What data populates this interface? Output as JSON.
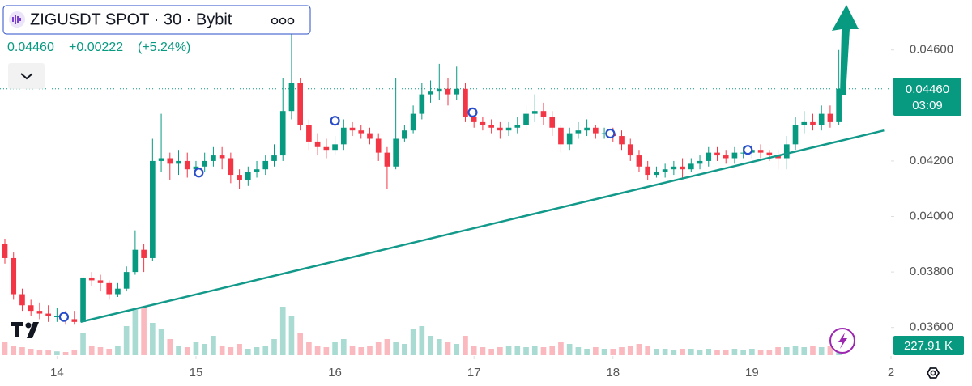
{
  "chart_data": {
    "type": "candlestick",
    "title": "ZIGUSDT SPOT · 30 · Bybit",
    "last_price": "0.04460",
    "change": "+0.00222",
    "change_pct": "(+5.24%)",
    "countdown": "03:09",
    "volume_label": "227.91 K",
    "up_color": "#089981",
    "down_color": "#f23645",
    "xlim": [
      13.59,
      20.0
    ],
    "ylim": [
      0.035,
      0.0478
    ],
    "xticks": [
      14,
      15,
      16,
      17,
      18,
      19,
      {
        "value": 20,
        "label": "2"
      }
    ],
    "yticks": [
      {
        "value": 0.046,
        "label": "0.04600"
      },
      {
        "value": 0.042,
        "label": "0.04200"
      },
      {
        "value": 0.04,
        "label": "0.04000"
      },
      {
        "value": 0.038,
        "label": "0.03800"
      },
      {
        "value": 0.036,
        "label": "0.03600"
      }
    ],
    "x": [
      13.625,
      13.6875,
      13.75,
      13.8125,
      13.875,
      13.9375,
      14.0,
      14.0625,
      14.125,
      14.1875,
      14.25,
      14.3125,
      14.375,
      14.4375,
      14.5,
      14.5625,
      14.625,
      14.6875,
      14.75,
      14.8125,
      14.875,
      14.9375,
      15.0,
      15.0625,
      15.125,
      15.1875,
      15.25,
      15.3125,
      15.375,
      15.4375,
      15.5,
      15.5625,
      15.625,
      15.6875,
      15.75,
      15.8125,
      15.875,
      15.9375,
      16.0,
      16.0625,
      16.125,
      16.1875,
      16.25,
      16.3125,
      16.375,
      16.4375,
      16.5,
      16.5625,
      16.625,
      16.6875,
      16.75,
      16.8125,
      16.875,
      16.9375,
      17.0,
      17.0625,
      17.125,
      17.1875,
      17.25,
      17.3125,
      17.375,
      17.4375,
      17.5,
      17.5625,
      17.625,
      17.6875,
      17.75,
      17.8125,
      17.875,
      17.9375,
      18.0,
      18.0625,
      18.125,
      18.1875,
      18.25,
      18.3125,
      18.375,
      18.4375,
      18.5,
      18.5625,
      18.625,
      18.6875,
      18.75,
      18.8125,
      18.875,
      18.9375,
      19.0,
      19.0625,
      19.125,
      19.1875,
      19.25,
      19.3125,
      19.375,
      19.4375,
      19.5,
      19.5625,
      19.625
    ],
    "open": [
      0.039,
      0.0385,
      0.0372,
      0.0368,
      0.0366,
      0.0365,
      0.0364,
      0.0364,
      0.0363,
      0.0362,
      0.0378,
      0.0377,
      0.0376,
      0.0372,
      0.0374,
      0.038,
      0.0388,
      0.0385,
      0.042,
      0.0421,
      0.0419,
      0.042,
      0.0417,
      0.0418,
      0.042,
      0.0422,
      0.0421,
      0.0415,
      0.0413,
      0.0416,
      0.0417,
      0.042,
      0.0422,
      0.0438,
      0.0448,
      0.0433,
      0.0427,
      0.0425,
      0.0424,
      0.0426,
      0.0432,
      0.0431,
      0.043,
      0.0428,
      0.0423,
      0.0418,
      0.0428,
      0.0431,
      0.0437,
      0.0444,
      0.0445,
      0.0446,
      0.0444,
      0.0446,
      0.0436,
      0.0434,
      0.0433,
      0.0432,
      0.0431,
      0.0432,
      0.0433,
      0.0437,
      0.0438,
      0.0436,
      0.0432,
      0.0426,
      0.043,
      0.0431,
      0.0432,
      0.043,
      0.043,
      0.0429,
      0.0426,
      0.0422,
      0.0418,
      0.0415,
      0.0416,
      0.0417,
      0.0418,
      0.0417,
      0.0419,
      0.042,
      0.0423,
      0.0422,
      0.0421,
      0.0423,
      0.0423,
      0.0424,
      0.0423,
      0.0422,
      0.0421,
      0.0426,
      0.0433,
      0.0434,
      0.0433,
      0.0437,
      0.0434
    ],
    "high": [
      0.0392,
      0.0387,
      0.0374,
      0.037,
      0.0369,
      0.0368,
      0.0367,
      0.0366,
      0.0366,
      0.0379,
      0.038,
      0.0379,
      0.0377,
      0.0376,
      0.0382,
      0.0395,
      0.039,
      0.0428,
      0.0437,
      0.0423,
      0.0424,
      0.0423,
      0.042,
      0.0423,
      0.0425,
      0.0425,
      0.0423,
      0.0417,
      0.0418,
      0.042,
      0.0422,
      0.0426,
      0.045,
      0.0472,
      0.045,
      0.0435,
      0.043,
      0.0428,
      0.0429,
      0.0435,
      0.0434,
      0.0433,
      0.0432,
      0.043,
      0.0425,
      0.045,
      0.0433,
      0.044,
      0.0448,
      0.0449,
      0.0455,
      0.045,
      0.0454,
      0.0448,
      0.0438,
      0.0436,
      0.0435,
      0.0434,
      0.0434,
      0.0436,
      0.044,
      0.0444,
      0.0441,
      0.0438,
      0.0433,
      0.0432,
      0.0434,
      0.0435,
      0.0433,
      0.0432,
      0.0432,
      0.0431,
      0.0428,
      0.0424,
      0.042,
      0.0418,
      0.0419,
      0.042,
      0.0421,
      0.0421,
      0.0422,
      0.0425,
      0.0425,
      0.0424,
      0.0425,
      0.0425,
      0.0426,
      0.0426,
      0.0424,
      0.0424,
      0.0429,
      0.0436,
      0.0438,
      0.0437,
      0.044,
      0.044,
      0.046
    ],
    "low": [
      0.0383,
      0.037,
      0.0366,
      0.0364,
      0.0363,
      0.0362,
      0.0362,
      0.0361,
      0.0361,
      0.0361,
      0.0375,
      0.0373,
      0.037,
      0.0371,
      0.0373,
      0.0379,
      0.038,
      0.0384,
      0.0416,
      0.0413,
      0.0415,
      0.0414,
      0.0415,
      0.0416,
      0.0418,
      0.0417,
      0.0412,
      0.041,
      0.0411,
      0.0414,
      0.0415,
      0.0418,
      0.042,
      0.0435,
      0.0431,
      0.0424,
      0.0422,
      0.0421,
      0.0422,
      0.0424,
      0.0429,
      0.0428,
      0.0426,
      0.042,
      0.041,
      0.0417,
      0.0427,
      0.043,
      0.0435,
      0.0441,
      0.0442,
      0.044,
      0.0442,
      0.0434,
      0.0432,
      0.0431,
      0.043,
      0.0428,
      0.0429,
      0.043,
      0.0431,
      0.0434,
      0.0433,
      0.0429,
      0.0423,
      0.0424,
      0.0428,
      0.0429,
      0.0428,
      0.0428,
      0.0427,
      0.0424,
      0.042,
      0.0416,
      0.0413,
      0.0414,
      0.0414,
      0.0415,
      0.0414,
      0.0416,
      0.0417,
      0.0418,
      0.042,
      0.0419,
      0.0419,
      0.0421,
      0.0421,
      0.0421,
      0.042,
      0.0417,
      0.0417,
      0.0424,
      0.043,
      0.0431,
      0.0431,
      0.0432,
      0.0433
    ],
    "close": [
      0.0385,
      0.0372,
      0.0368,
      0.0366,
      0.0365,
      0.0364,
      0.0364,
      0.0363,
      0.0362,
      0.0378,
      0.0377,
      0.0376,
      0.0372,
      0.0374,
      0.038,
      0.0388,
      0.0385,
      0.042,
      0.0421,
      0.0419,
      0.042,
      0.0417,
      0.0418,
      0.042,
      0.0422,
      0.0421,
      0.0415,
      0.0413,
      0.0416,
      0.0417,
      0.042,
      0.0422,
      0.0438,
      0.0448,
      0.0433,
      0.0427,
      0.0425,
      0.0424,
      0.0426,
      0.0432,
      0.0431,
      0.043,
      0.0428,
      0.0423,
      0.0418,
      0.0428,
      0.0431,
      0.0437,
      0.0444,
      0.0445,
      0.0446,
      0.0444,
      0.0446,
      0.0436,
      0.0434,
      0.0433,
      0.0432,
      0.0431,
      0.0432,
      0.0433,
      0.0437,
      0.0438,
      0.0436,
      0.0432,
      0.0426,
      0.043,
      0.0431,
      0.0432,
      0.043,
      0.043,
      0.0429,
      0.0426,
      0.0422,
      0.0418,
      0.0415,
      0.0416,
      0.0417,
      0.0418,
      0.0417,
      0.0419,
      0.042,
      0.0423,
      0.0422,
      0.0421,
      0.0423,
      0.0423,
      0.0424,
      0.0423,
      0.0422,
      0.0421,
      0.0426,
      0.0433,
      0.0434,
      0.0433,
      0.0437,
      0.0434,
      0.0446
    ],
    "volume": [
      400,
      300,
      250,
      200,
      150,
      150,
      120,
      100,
      150,
      700,
      300,
      250,
      200,
      300,
      900,
      1400,
      1500,
      1000,
      800,
      500,
      300,
      250,
      400,
      350,
      600,
      300,
      250,
      350,
      200,
      250,
      300,
      500,
      1500,
      1200,
      700,
      400,
      300,
      250,
      400,
      500,
      300,
      250,
      300,
      400,
      500,
      400,
      350,
      800,
      900,
      600,
      500,
      400,
      350,
      600,
      300,
      250,
      200,
      250,
      300,
      300,
      250,
      300,
      250,
      300,
      400,
      350,
      250,
      200,
      250,
      200,
      200,
      250,
      300,
      350,
      300,
      200,
      200,
      150,
      200,
      200,
      150,
      200,
      150,
      150,
      200,
      150,
      200,
      150,
      150,
      250,
      250,
      300,
      250,
      300,
      250,
      300,
      227.91
    ],
    "trendline": {
      "x": [
        14.17,
        19.95
      ],
      "y": [
        0.0362,
        0.0431
      ],
      "color": "#12998a"
    },
    "markers": {
      "x": [
        14.05,
        15.02,
        16.0,
        16.99,
        17.98,
        18.97
      ],
      "y": [
        0.03638,
        0.04158,
        0.04345,
        0.04375,
        0.04299,
        0.0424
      ],
      "color": "#2a4ec9"
    }
  }
}
